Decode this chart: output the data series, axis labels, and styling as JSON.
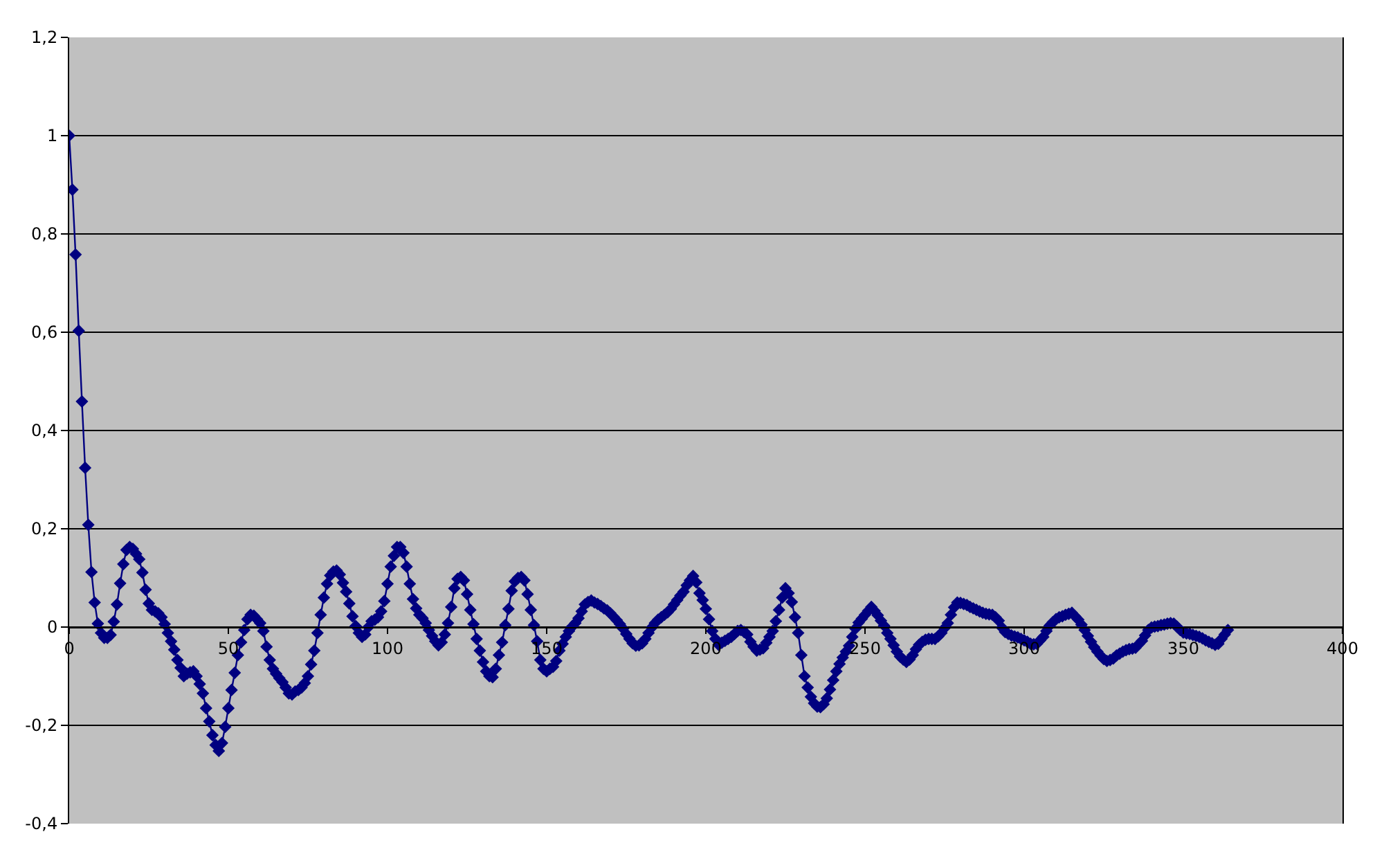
{
  "chart_data": {
    "type": "line",
    "marker": "diamond",
    "grid": "y",
    "xlim": [
      0,
      400
    ],
    "xticks": [
      0,
      50,
      100,
      150,
      200,
      250,
      300,
      350,
      400
    ],
    "ylim": [
      -0.4,
      1.2
    ],
    "yticks": [
      {
        "value": -0.4,
        "label": "-0,4"
      },
      {
        "value": -0.2,
        "label": "-0,2"
      },
      0,
      {
        "value": 0.2,
        "label": "0,2"
      },
      {
        "value": 0.4,
        "label": "0,4"
      },
      {
        "value": 0.6,
        "label": "0,6"
      },
      {
        "value": 0.8,
        "label": "0,8"
      },
      1,
      {
        "value": 1.2,
        "label": "1,2"
      }
    ],
    "x": [
      0,
      1,
      2,
      3,
      4,
      5,
      6,
      7,
      8,
      9,
      10,
      11,
      12,
      13,
      14,
      15,
      16,
      17,
      18,
      19,
      20,
      21,
      22,
      23,
      24,
      25,
      26,
      27,
      28,
      29,
      30,
      31,
      32,
      33,
      34,
      35,
      36,
      37,
      38,
      39,
      40,
      41,
      42,
      43,
      44,
      45,
      46,
      47,
      48,
      49,
      50,
      51,
      52,
      53,
      54,
      55,
      56,
      57,
      58,
      59,
      60,
      61,
      62,
      63,
      64,
      65,
      66,
      67,
      68,
      69,
      70,
      71,
      72,
      73,
      74,
      75,
      76,
      77,
      78,
      79,
      80,
      81,
      82,
      83,
      84,
      85,
      86,
      87,
      88,
      89,
      90,
      91,
      92,
      93,
      94,
      95,
      96,
      97,
      98,
      99,
      100,
      101,
      102,
      103,
      104,
      105,
      106,
      107,
      108,
      109,
      110,
      111,
      112,
      113,
      114,
      115,
      116,
      117,
      118,
      119,
      120,
      121,
      122,
      123,
      124,
      125,
      126,
      127,
      128,
      129,
      130,
      131,
      132,
      133,
      134,
      135,
      136,
      137,
      138,
      139,
      140,
      141,
      142,
      143,
      144,
      145,
      146,
      147,
      148,
      149,
      150,
      151,
      152,
      153,
      154,
      155,
      156,
      157,
      158,
      159,
      160,
      161,
      162,
      163,
      164,
      165,
      166,
      167,
      168,
      169,
      170,
      171,
      172,
      173,
      174,
      175,
      176,
      177,
      178,
      179,
      180,
      181,
      182,
      183,
      184,
      185,
      186,
      187,
      188,
      189,
      190,
      191,
      192,
      193,
      194,
      195,
      196,
      197,
      198,
      199,
      200,
      201,
      202,
      203,
      204,
      205,
      206,
      207,
      208,
      209,
      210,
      211,
      212,
      213,
      214,
      215,
      216,
      217,
      218,
      219,
      220,
      221,
      222,
      223,
      224,
      225,
      226,
      227,
      228,
      229,
      230,
      231,
      232,
      233,
      234,
      235,
      236,
      237,
      238,
      239,
      240,
      241,
      242,
      243,
      244,
      245,
      246,
      247,
      248,
      249,
      250,
      251,
      252,
      253,
      254,
      255,
      256,
      257,
      258,
      259,
      260,
      261,
      262,
      263,
      264,
      265,
      266,
      267,
      268,
      269,
      270,
      271,
      272,
      273,
      274,
      275,
      276,
      277,
      278,
      279,
      280,
      281,
      282,
      283,
      284,
      285,
      286,
      287,
      288,
      289,
      290,
      291,
      292,
      293,
      294,
      295,
      296,
      297,
      298,
      299,
      300,
      301,
      302,
      303,
      304,
      305,
      306,
      307,
      308,
      309,
      310,
      311,
      312,
      313,
      314,
      315,
      316,
      317,
      318,
      319,
      320,
      321,
      322,
      323,
      324,
      325,
      326,
      327,
      328,
      329,
      330,
      331,
      332,
      333,
      334,
      335,
      336,
      337,
      338,
      339,
      340,
      341,
      342,
      343,
      344,
      345,
      346,
      347,
      348,
      349,
      350,
      351,
      352,
      353,
      354,
      355,
      356,
      357,
      358,
      359,
      360,
      361,
      362,
      363,
      364
    ],
    "series": [
      {
        "color": "#000080",
        "values": [
          1,
          0.89,
          0.758,
          0.603,
          0.459,
          0.324,
          0.208,
          0.112,
          0.05,
          0.007,
          -0.012,
          -0.022,
          -0.022,
          -0.016,
          0.011,
          0.046,
          0.089,
          0.128,
          0.157,
          0.163,
          0.159,
          0.149,
          0.138,
          0.111,
          0.076,
          0.048,
          0.035,
          0.032,
          0.028,
          0.02,
          0.006,
          -0.012,
          -0.029,
          -0.046,
          -0.067,
          -0.083,
          -0.1,
          -0.095,
          -0.092,
          -0.09,
          -0.1,
          -0.116,
          -0.135,
          -0.165,
          -0.192,
          -0.22,
          -0.24,
          -0.252,
          -0.236,
          -0.203,
          -0.165,
          -0.128,
          -0.093,
          -0.057,
          -0.031,
          -0.006,
          0.016,
          0.025,
          0.023,
          0.016,
          0.008,
          -0.008,
          -0.04,
          -0.067,
          -0.085,
          -0.095,
          -0.104,
          -0.112,
          -0.123,
          -0.135,
          -0.137,
          -0.131,
          -0.128,
          -0.123,
          -0.114,
          -0.1,
          -0.076,
          -0.048,
          -0.012,
          0.025,
          0.06,
          0.088,
          0.105,
          0.113,
          0.115,
          0.107,
          0.09,
          0.072,
          0.048,
          0.022,
          0.002,
          -0.012,
          -0.02,
          -0.015,
          0,
          0.012,
          0.015,
          0.02,
          0.032,
          0.053,
          0.088,
          0.123,
          0.145,
          0.163,
          0.163,
          0.151,
          0.123,
          0.088,
          0.057,
          0.038,
          0.025,
          0.018,
          0.008,
          -0.006,
          -0.018,
          -0.029,
          -0.037,
          -0.031,
          -0.015,
          0.008,
          0.041,
          0.079,
          0.098,
          0.102,
          0.095,
          0.067,
          0.035,
          0.006,
          -0.024,
          -0.048,
          -0.071,
          -0.09,
          -0.1,
          -0.102,
          -0.085,
          -0.057,
          -0.031,
          0.004,
          0.037,
          0.074,
          0.093,
          0.1,
          0.102,
          0.095,
          0.067,
          0.035,
          0.004,
          -0.029,
          -0.067,
          -0.085,
          -0.09,
          -0.085,
          -0.081,
          -0.069,
          -0.048,
          -0.034,
          -0.02,
          -0.008,
          0.001,
          0.008,
          0.018,
          0.032,
          0.046,
          0.051,
          0.054,
          0.05,
          0.047,
          0.043,
          0.038,
          0.034,
          0.028,
          0.021,
          0.014,
          0.006,
          -0.003,
          -0.014,
          -0.024,
          -0.033,
          -0.038,
          -0.037,
          -0.033,
          -0.024,
          -0.012,
          -0.001,
          0.008,
          0.015,
          0.02,
          0.025,
          0.03,
          0.037,
          0.046,
          0.055,
          0.064,
          0.072,
          0.085,
          0.095,
          0.104,
          0.091,
          0.069,
          0.055,
          0.037,
          0.016,
          -0.008,
          -0.024,
          -0.036,
          -0.032,
          -0.028,
          -0.024,
          -0.02,
          -0.014,
          -0.008,
          -0.006,
          -0.01,
          -0.015,
          -0.03,
          -0.04,
          -0.048,
          -0.046,
          -0.043,
          -0.032,
          -0.02,
          -0.008,
          0.012,
          0.035,
          0.06,
          0.079,
          0.069,
          0.051,
          0.02,
          -0.012,
          -0.057,
          -0.1,
          -0.123,
          -0.142,
          -0.155,
          -0.162,
          -0.163,
          -0.157,
          -0.145,
          -0.127,
          -0.108,
          -0.09,
          -0.075,
          -0.062,
          -0.05,
          -0.038,
          -0.02,
          -0.003,
          0.009,
          0.017,
          0.025,
          0.033,
          0.041,
          0.033,
          0.024,
          0.013,
          0.003,
          -0.012,
          -0.024,
          -0.037,
          -0.05,
          -0.06,
          -0.066,
          -0.071,
          -0.066,
          -0.057,
          -0.045,
          -0.036,
          -0.03,
          -0.026,
          -0.024,
          -0.024,
          -0.024,
          -0.019,
          -0.012,
          -0.002,
          0.008,
          0.025,
          0.04,
          0.05,
          0.049,
          0.047,
          0.045,
          0.041,
          0.038,
          0.035,
          0.032,
          0.029,
          0.027,
          0.026,
          0.025,
          0.02,
          0.013,
          -0.001,
          -0.01,
          -0.014,
          -0.017,
          -0.019,
          -0.021,
          -0.024,
          -0.027,
          -0.03,
          -0.034,
          -0.035,
          -0.034,
          -0.027,
          -0.02,
          -0.008,
          0.003,
          0.01,
          0.016,
          0.02,
          0.022,
          0.025,
          0.027,
          0.029,
          0.022,
          0.015,
          0.005,
          -0.006,
          -0.018,
          -0.03,
          -0.041,
          -0.05,
          -0.058,
          -0.065,
          -0.069,
          -0.067,
          -0.064,
          -0.058,
          -0.054,
          -0.05,
          -0.047,
          -0.045,
          -0.044,
          -0.042,
          -0.035,
          -0.028,
          -0.017,
          -0.006,
          -0.001,
          0.001,
          0.002,
          0.004,
          0.005,
          0.007,
          0.008,
          0.007,
          0.001,
          -0.006,
          -0.011,
          -0.013,
          -0.014,
          -0.016,
          -0.018,
          -0.02,
          -0.023,
          -0.027,
          -0.03,
          -0.033,
          -0.036,
          -0.034,
          -0.024,
          -0.015,
          -0.006
        ]
      }
    ]
  }
}
